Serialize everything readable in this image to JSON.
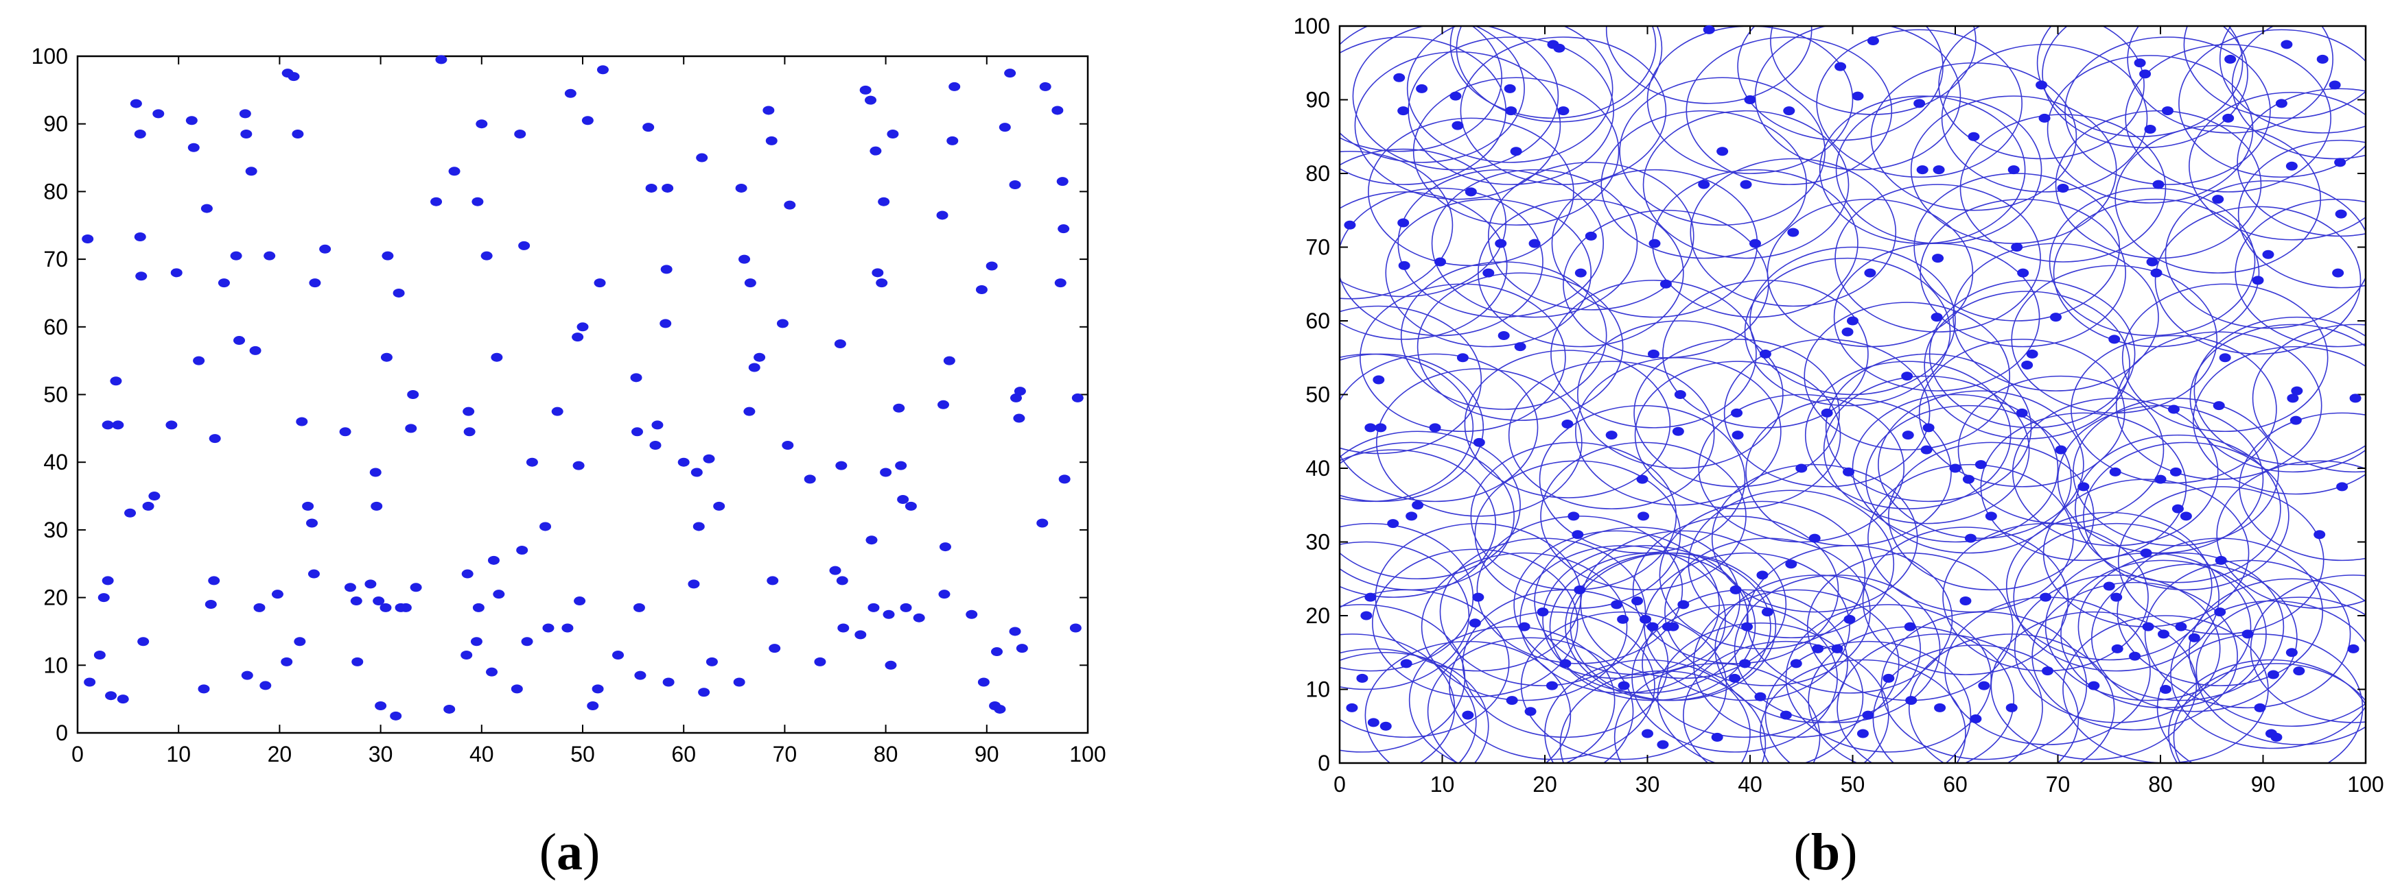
{
  "figure": {
    "panels": [
      {
        "id": "a",
        "caption_letter": "a"
      },
      {
        "id": "b",
        "caption_letter": "b"
      }
    ]
  },
  "colors": {
    "points": "#1f1fe6",
    "circles": "#3838d4",
    "axes": "#000000"
  },
  "chart_data": [
    {
      "type": "scatter",
      "panel": "a",
      "title": "",
      "xlabel": "",
      "ylabel": "",
      "xlim": [
        0,
        100
      ],
      "ylim": [
        0,
        100
      ],
      "xticks": [
        0,
        10,
        20,
        30,
        40,
        50,
        60,
        70,
        80,
        90,
        100
      ],
      "yticks": [
        0,
        10,
        20,
        30,
        40,
        50,
        60,
        70,
        80,
        90,
        100
      ],
      "grid": false,
      "points": [
        [
          1,
          73
        ],
        [
          1.2,
          7.5
        ],
        [
          2.2,
          11.5
        ],
        [
          2.6,
          20
        ],
        [
          3,
          22.5
        ],
        [
          3,
          45.5
        ],
        [
          3.3,
          5.5
        ],
        [
          3.8,
          52
        ],
        [
          4,
          45.5
        ],
        [
          4.5,
          5
        ],
        [
          5.2,
          32.5
        ],
        [
          5.8,
          93
        ],
        [
          6.2,
          88.5
        ],
        [
          6.2,
          73.3
        ],
        [
          6.3,
          67.5
        ],
        [
          6.5,
          13.5
        ],
        [
          7,
          33.5
        ],
        [
          7.6,
          35
        ],
        [
          8,
          91.5
        ],
        [
          9.3,
          45.5
        ],
        [
          9.8,
          68
        ],
        [
          11.3,
          90.5
        ],
        [
          11.5,
          86.5
        ],
        [
          12,
          55
        ],
        [
          12.5,
          6.5
        ],
        [
          12.8,
          77.5
        ],
        [
          13.2,
          19
        ],
        [
          13.5,
          22.5
        ],
        [
          13.6,
          43.5
        ],
        [
          14.5,
          66.5
        ],
        [
          15.7,
          70.5
        ],
        [
          16,
          58
        ],
        [
          16.6,
          91.5
        ],
        [
          16.7,
          88.5
        ],
        [
          16.8,
          8.5
        ],
        [
          17.2,
          83
        ],
        [
          17.6,
          56.5
        ],
        [
          18,
          18.5
        ],
        [
          18.6,
          7
        ],
        [
          19,
          70.5
        ],
        [
          19.8,
          20.5
        ],
        [
          20.7,
          10.5
        ],
        [
          20.8,
          97.5
        ],
        [
          21.4,
          97
        ],
        [
          21.8,
          88.5
        ],
        [
          22,
          13.5
        ],
        [
          22.2,
          46
        ],
        [
          22.8,
          33.5
        ],
        [
          23.2,
          31
        ],
        [
          23.4,
          23.5
        ],
        [
          23.5,
          66.5
        ],
        [
          24.5,
          71.5
        ],
        [
          26.5,
          44.5
        ],
        [
          27,
          21.5
        ],
        [
          27.6,
          19.5
        ],
        [
          27.7,
          10.5
        ],
        [
          29,
          22
        ],
        [
          29.5,
          38.5
        ],
        [
          29.6,
          33.5
        ],
        [
          29.8,
          19.5
        ],
        [
          30,
          4
        ],
        [
          30.5,
          18.5
        ],
        [
          30.6,
          55.5
        ],
        [
          30.7,
          70.5
        ],
        [
          31.5,
          2.5
        ],
        [
          31.8,
          65
        ],
        [
          32,
          18.5
        ],
        [
          32.5,
          18.5
        ],
        [
          33,
          45
        ],
        [
          33.2,
          50
        ],
        [
          33.5,
          21.5
        ],
        [
          35.5,
          78.5
        ],
        [
          36,
          99.5
        ],
        [
          36.8,
          3.5
        ],
        [
          37.3,
          83
        ],
        [
          38.5,
          11.5
        ],
        [
          38.6,
          23.5
        ],
        [
          38.7,
          47.5
        ],
        [
          38.8,
          44.5
        ],
        [
          39.5,
          13.5
        ],
        [
          39.6,
          78.5
        ],
        [
          39.7,
          18.5
        ],
        [
          40,
          90
        ],
        [
          40.5,
          70.5
        ],
        [
          41,
          9
        ],
        [
          41.2,
          25.5
        ],
        [
          41.5,
          55.5
        ],
        [
          41.7,
          20.5
        ],
        [
          43.5,
          6.5
        ],
        [
          43.8,
          88.5
        ],
        [
          44,
          27
        ],
        [
          44.2,
          72
        ],
        [
          44.5,
          13.5
        ],
        [
          45,
          40
        ],
        [
          46.3,
          30.5
        ],
        [
          46.6,
          15.5
        ],
        [
          47.5,
          47.5
        ],
        [
          48.5,
          15.5
        ],
        [
          48.8,
          94.5
        ],
        [
          49.5,
          58.5
        ],
        [
          49.6,
          39.5
        ],
        [
          49.7,
          19.5
        ],
        [
          50,
          60
        ],
        [
          50.5,
          90.5
        ],
        [
          51,
          4
        ],
        [
          51.5,
          6.5
        ],
        [
          51.7,
          66.5
        ],
        [
          52,
          98
        ],
        [
          53.5,
          11.5
        ],
        [
          55.3,
          52.5
        ],
        [
          55.4,
          44.5
        ],
        [
          55.6,
          18.5
        ],
        [
          55.7,
          8.5
        ],
        [
          56.5,
          89.5
        ],
        [
          56.8,
          80.5
        ],
        [
          57.2,
          42.5
        ],
        [
          57.4,
          45.5
        ],
        [
          58.2,
          60.5
        ],
        [
          58.3,
          68.5
        ],
        [
          58.4,
          80.5
        ],
        [
          58.5,
          7.5
        ],
        [
          60,
          40
        ],
        [
          61,
          22
        ],
        [
          61.3,
          38.5
        ],
        [
          61.5,
          30.5
        ],
        [
          61.8,
          85
        ],
        [
          62,
          6
        ],
        [
          62.5,
          40.5
        ],
        [
          62.8,
          10.5
        ],
        [
          63.5,
          33.5
        ],
        [
          65.5,
          7.5
        ],
        [
          65.7,
          80.5
        ],
        [
          66,
          70
        ],
        [
          66.5,
          47.5
        ],
        [
          66.6,
          66.5
        ],
        [
          67,
          54
        ],
        [
          67.5,
          55.5
        ],
        [
          68.4,
          92
        ],
        [
          68.7,
          87.5
        ],
        [
          68.8,
          22.5
        ],
        [
          69,
          12.5
        ],
        [
          69.8,
          60.5
        ],
        [
          70.3,
          42.5
        ],
        [
          70.5,
          78
        ],
        [
          72.5,
          37.5
        ],
        [
          73.5,
          10.5
        ],
        [
          75,
          24
        ],
        [
          75.5,
          57.5
        ],
        [
          75.6,
          39.5
        ],
        [
          75.7,
          22.5
        ],
        [
          75.8,
          15.5
        ],
        [
          77.5,
          14.5
        ],
        [
          78,
          95
        ],
        [
          78.5,
          93.5
        ],
        [
          78.6,
          28.5
        ],
        [
          78.8,
          18.5
        ],
        [
          79,
          86
        ],
        [
          79.2,
          68
        ],
        [
          79.6,
          66.5
        ],
        [
          79.8,
          78.5
        ],
        [
          80,
          38.5
        ],
        [
          80.3,
          17.5
        ],
        [
          80.5,
          10
        ],
        [
          80.7,
          88.5
        ],
        [
          81.3,
          48
        ],
        [
          81.5,
          39.5
        ],
        [
          81.7,
          34.5
        ],
        [
          82.5,
          33.5
        ],
        [
          82,
          18.5
        ],
        [
          83.3,
          17
        ],
        [
          85.6,
          76.5
        ],
        [
          85.7,
          48.5
        ],
        [
          85.8,
          20.5
        ],
        [
          85.9,
          27.5
        ],
        [
          86.3,
          55
        ],
        [
          86.6,
          87.5
        ],
        [
          86.8,
          95.5
        ],
        [
          88.5,
          17.5
        ],
        [
          89.5,
          65.5
        ],
        [
          89.7,
          7.5
        ],
        [
          90.5,
          69
        ],
        [
          90.8,
          4
        ],
        [
          91,
          12
        ],
        [
          91.3,
          3.5
        ],
        [
          91.8,
          89.5
        ],
        [
          92.3,
          97.5
        ],
        [
          92.8,
          81
        ],
        [
          92.8,
          15
        ],
        [
          92.9,
          49.5
        ],
        [
          93.2,
          46.5
        ],
        [
          93.3,
          50.5
        ],
        [
          93.5,
          12.5
        ],
        [
          95.5,
          31
        ],
        [
          95.8,
          95.5
        ],
        [
          97,
          92
        ],
        [
          97.3,
          66.5
        ],
        [
          97.5,
          81.5
        ],
        [
          97.6,
          74.5
        ],
        [
          97.7,
          37.5
        ],
        [
          98.8,
          15.5
        ],
        [
          99,
          49.5
        ]
      ]
    },
    {
      "type": "scatter",
      "panel": "b",
      "title": "",
      "xlabel": "",
      "ylabel": "",
      "xlim": [
        0,
        100
      ],
      "ylim": [
        0,
        100
      ],
      "xticks": [
        0,
        10,
        20,
        30,
        40,
        50,
        60,
        70,
        80,
        90,
        100
      ],
      "yticks": [
        0,
        10,
        20,
        30,
        40,
        50,
        60,
        70,
        80,
        90,
        100
      ],
      "grid": false,
      "circle_radius": 10,
      "same_points_as": "a"
    }
  ]
}
